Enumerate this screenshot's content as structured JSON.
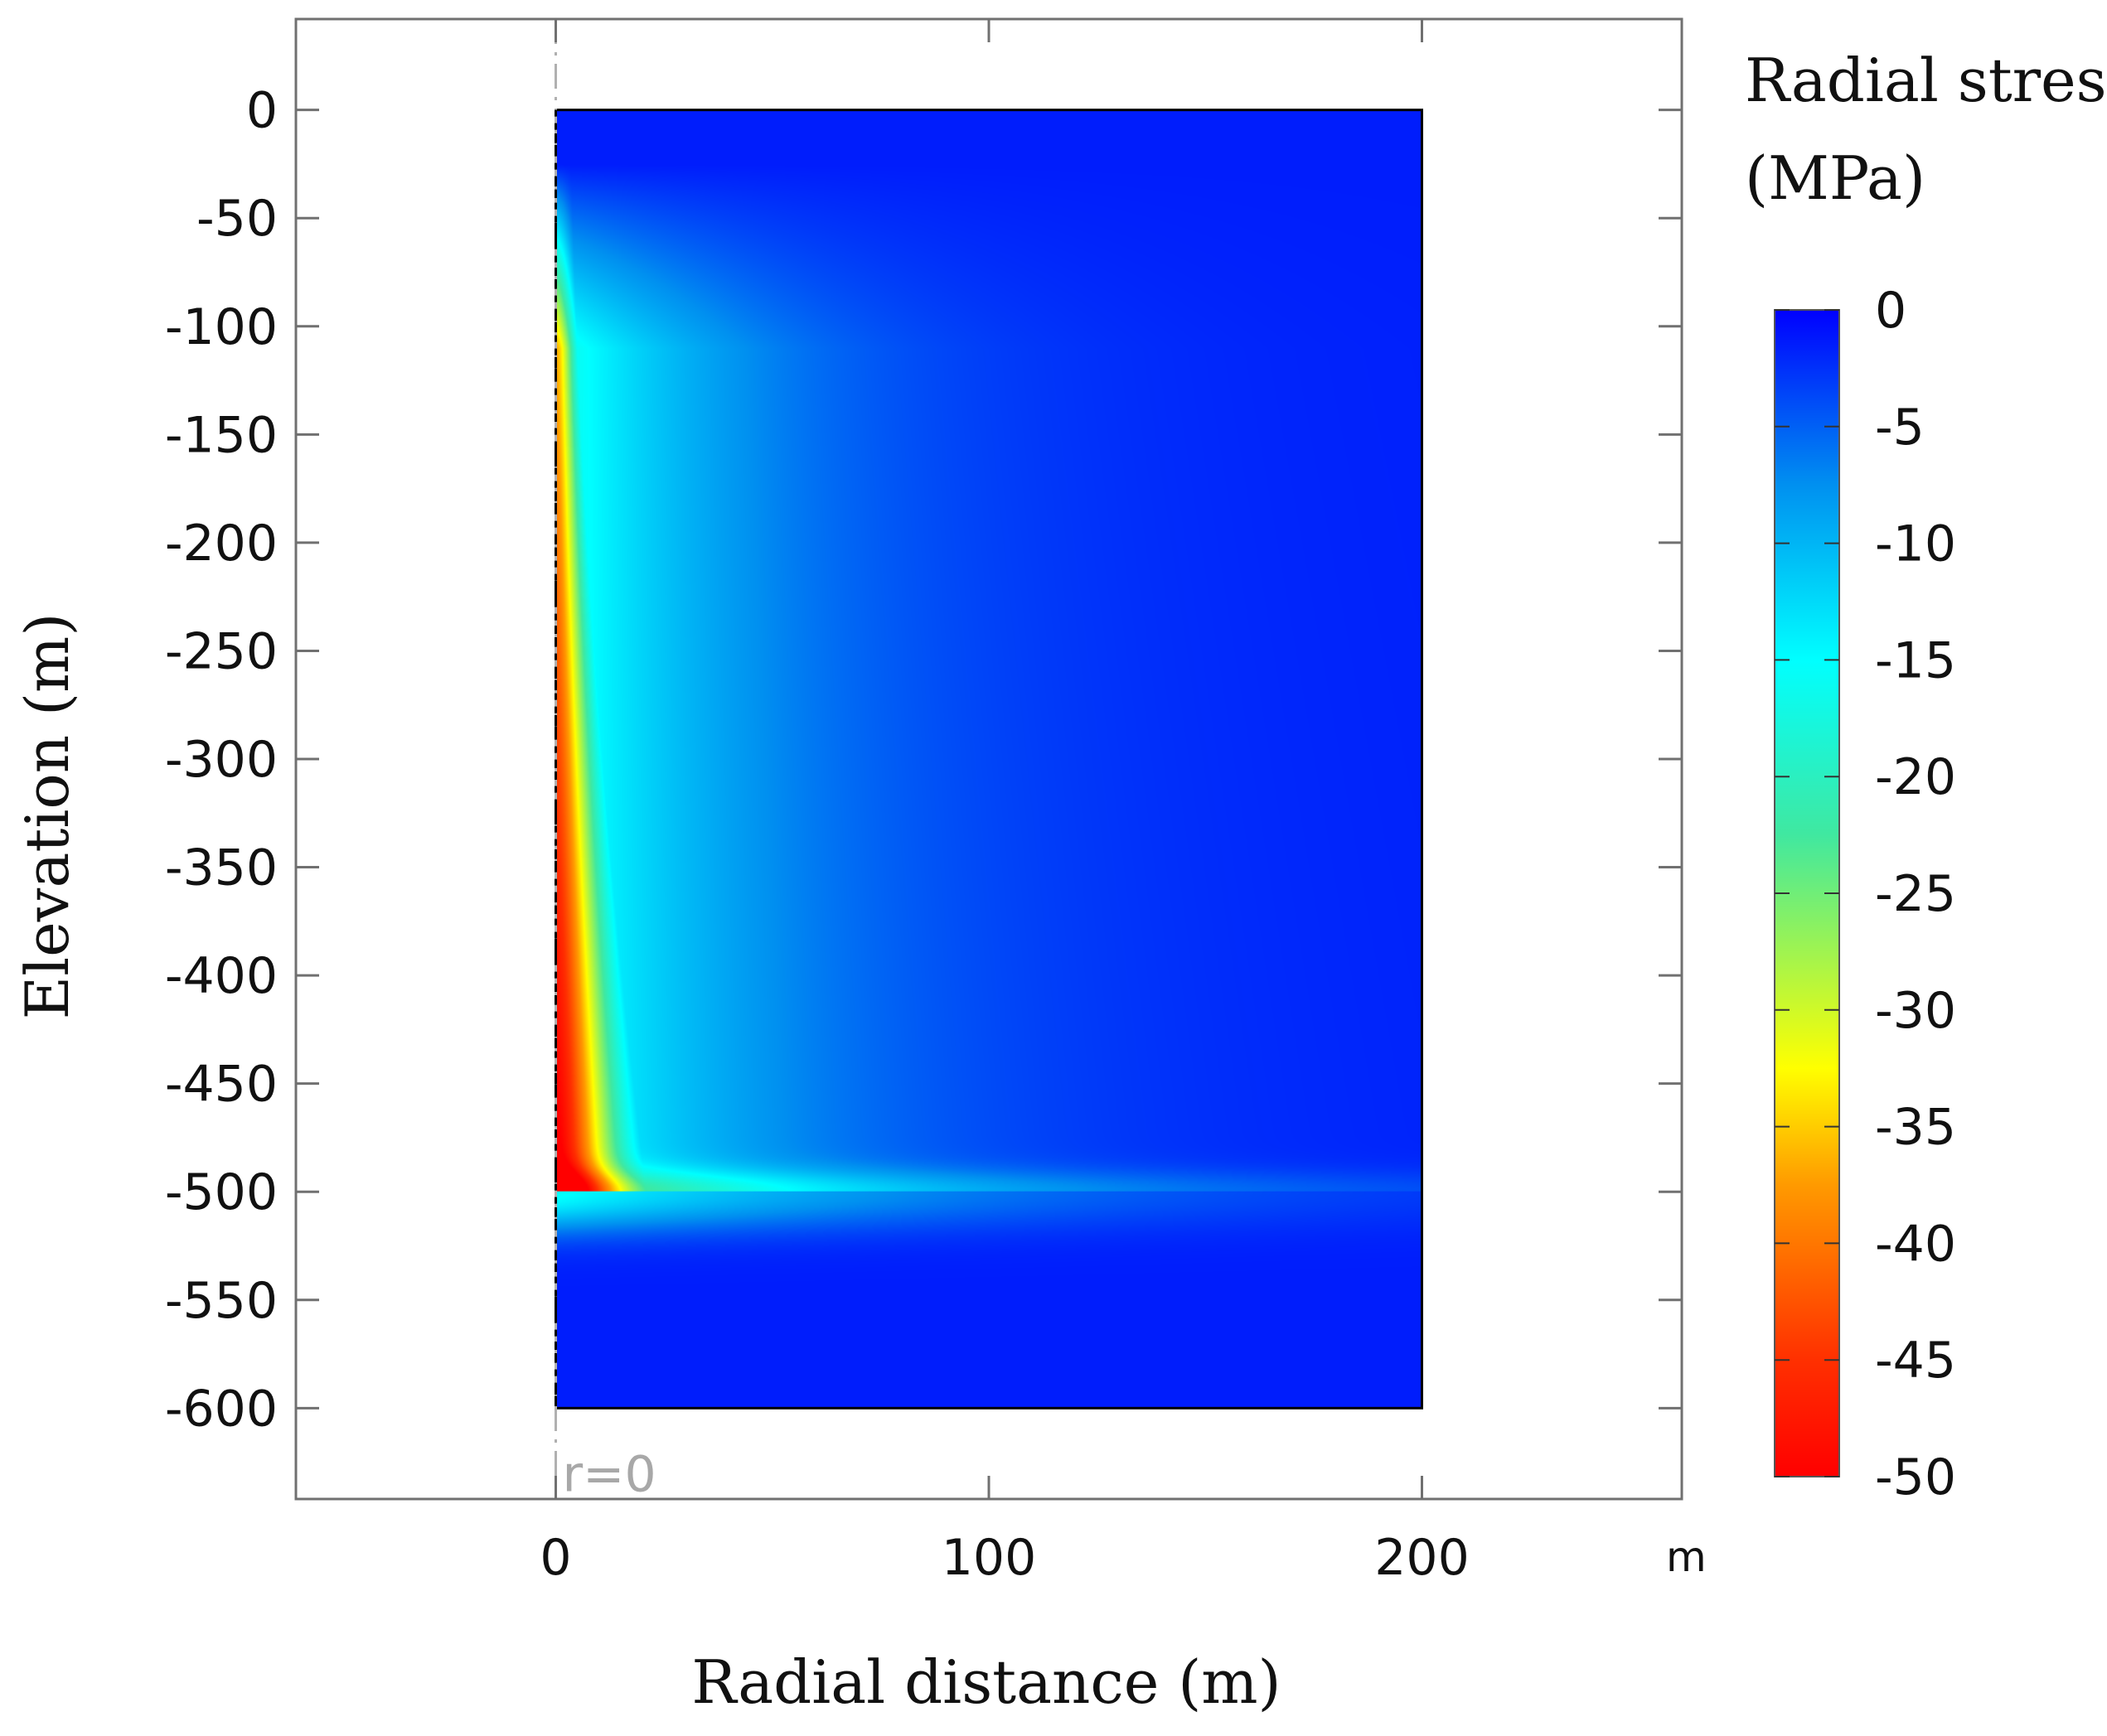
{
  "chart_data": {
    "type": "heatmap",
    "description_type": "2D axisymmetric contour plot",
    "title": "",
    "xlabel": "Radial distance (m)",
    "ylabel": "Elevation (m)",
    "x_unit_label": "m",
    "xlim": [
      -60,
      260
    ],
    "ylim": [
      -642,
      42
    ],
    "x_ticks": [
      0,
      100,
      200
    ],
    "y_ticks": [
      0,
      -50,
      -100,
      -150,
      -200,
      -250,
      -300,
      -350,
      -400,
      -450,
      -500,
      -550,
      -600
    ],
    "domain": {
      "r_min": 0,
      "r_max": 200,
      "z_min": -600,
      "z_max": 0
    },
    "colorbar": {
      "title_line1": "Radial stress",
      "title_line2": "(MPa)",
      "min": -50,
      "max": 0,
      "ticks": [
        0,
        -5,
        -10,
        -15,
        -20,
        -25,
        -30,
        -35,
        -40,
        -45,
        -50
      ],
      "colormap": "rainbow (red = -50, blue = 0)"
    },
    "annotations": [
      {
        "text": "r=0",
        "x": 0,
        "y": -630
      }
    ],
    "field_features": {
      "max_compression_MPa": -50,
      "max_compression_zone": "near axis r≈0–10 m, elevation ≈ -300 to -500 m",
      "discontinuity_elevation_m": -500,
      "background_value_MPa": -2
    },
    "colors": {
      "red": "#ff0000",
      "yellow": "#ffff00",
      "cyan": "#00ffff",
      "blue": "#0000ff"
    }
  }
}
